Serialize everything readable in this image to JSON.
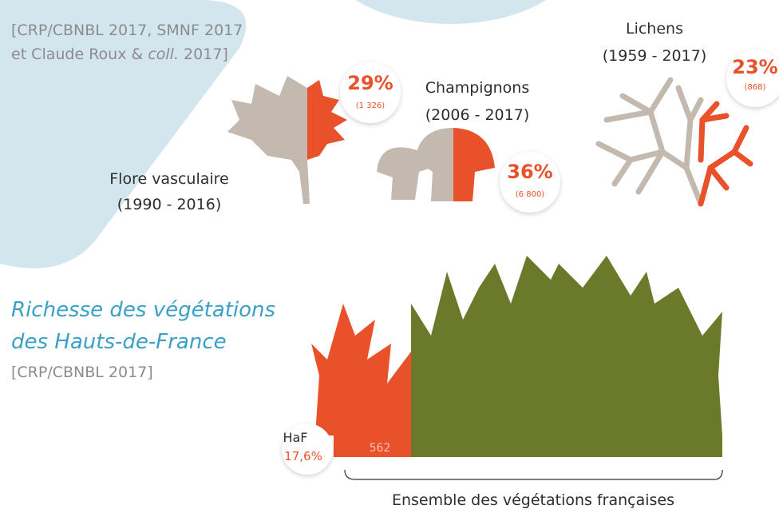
{
  "source": {
    "line1": "[CRP/CBNBL 2017, SMNF 2017",
    "line2_start": "et Claude Roux &",
    "line2_italic": "coll.",
    "line2_end": "2017]"
  },
  "groups": [
    {
      "name": "Flore vasculaire",
      "period": "(1990 - 2016)",
      "percent": "29%",
      "count": "(1 326)"
    },
    {
      "name": "Champignons",
      "period": "(2006 - 2017)",
      "percent": "36%",
      "count": "(6 800)"
    },
    {
      "name": "Lichens",
      "period": "(1959 - 2017)",
      "percent": "23%",
      "count": "(868)"
    }
  ],
  "vegetation": {
    "title_lines": [
      "Richesse des végétations",
      "des Hauts-de-France"
    ],
    "source": "[CRP/CBNBL 2017]",
    "region_label": "HaF",
    "region_percent": "17,6%",
    "region_count": "562",
    "total_label": "Ensemble des végétations françaises"
  }
}
